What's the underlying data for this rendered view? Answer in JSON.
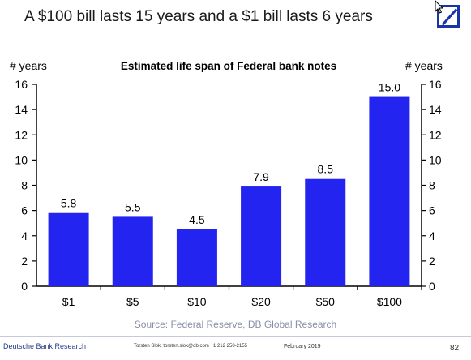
{
  "slide": {
    "title": "A $100 bill lasts 15 years and a $1 bill lasts 6 years",
    "logo_icon": "deutsche-bank-logo",
    "source": "Source: Federal Reserve, DB Global Research"
  },
  "footer": {
    "brand": "Deutsche Bank Research",
    "author": "Torsten Slok, torsten.slok@db.com +1 212 250-2155",
    "date": "February 2019",
    "page": "82"
  },
  "colors": {
    "bar": "#2424f0",
    "axis": "#000000",
    "brand": "#1a34a8"
  },
  "chart_data": {
    "type": "bar",
    "title": "Estimated life span of Federal bank notes",
    "ylabel_left": "# years",
    "ylabel_right": "# years",
    "categories": [
      "$1",
      "$5",
      "$10",
      "$20",
      "$50",
      "$100"
    ],
    "values": [
      5.8,
      5.5,
      4.5,
      7.9,
      8.5,
      15.0
    ],
    "value_labels": [
      "5.8",
      "5.5",
      "4.5",
      "7.9",
      "8.5",
      "15.0"
    ],
    "ylim": [
      0,
      16
    ],
    "yticks": [
      0,
      2,
      4,
      6,
      8,
      10,
      12,
      14,
      16
    ],
    "grid": false,
    "legend": "none"
  }
}
